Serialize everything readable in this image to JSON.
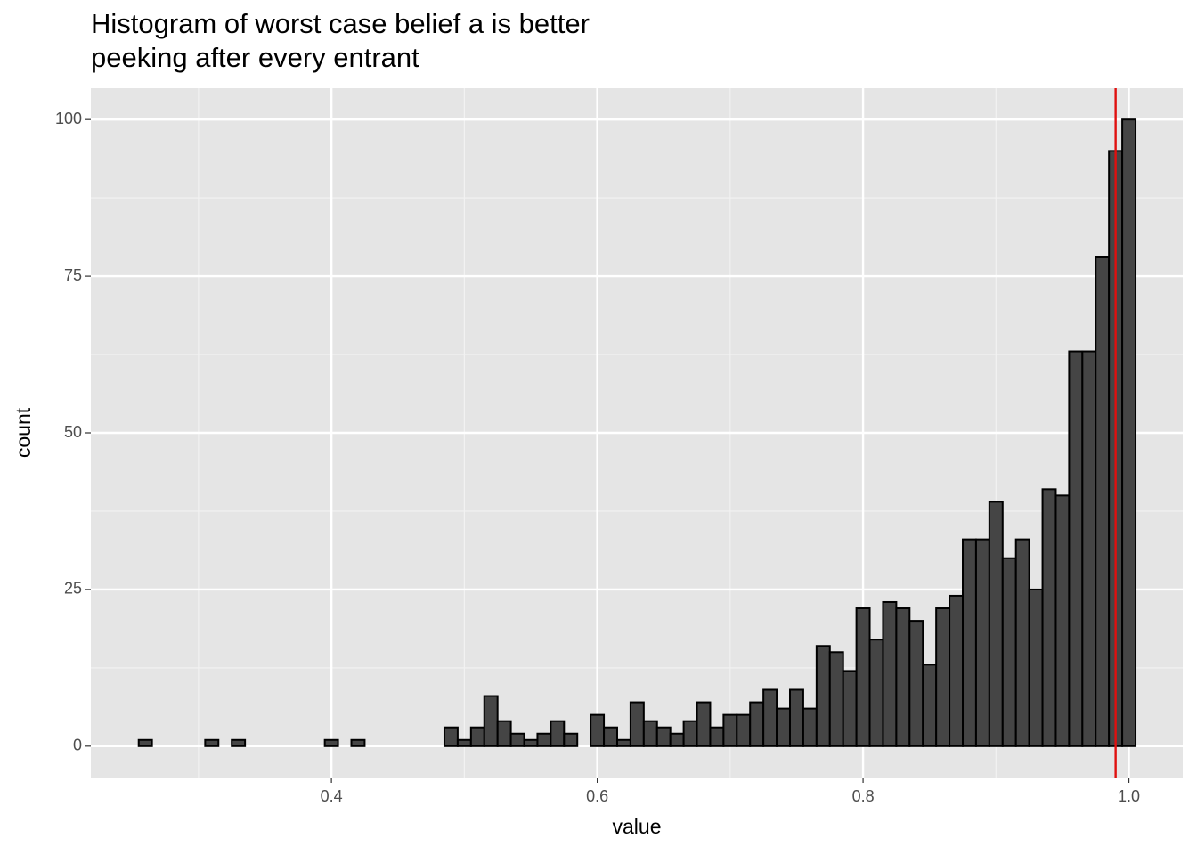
{
  "chart_data": {
    "type": "histogram",
    "title": [
      "Histogram of worst case belief a is better",
      "peeking after every entrant"
    ],
    "x_label": "value",
    "y_label": "count",
    "bins": [
      0.255,
      0.265,
      0.275,
      0.285,
      0.295,
      0.305,
      0.315,
      0.325,
      0.335,
      0.345,
      0.355,
      0.365,
      0.375,
      0.385,
      0.395,
      0.405,
      0.415,
      0.425,
      0.435,
      0.445,
      0.455,
      0.465,
      0.475,
      0.485,
      0.495,
      0.505,
      0.515,
      0.525,
      0.535,
      0.545,
      0.555,
      0.565,
      0.575,
      0.585,
      0.595,
      0.605,
      0.615,
      0.625,
      0.635,
      0.645,
      0.655,
      0.665,
      0.675,
      0.685,
      0.695,
      0.705,
      0.715,
      0.725,
      0.735,
      0.745,
      0.755,
      0.765,
      0.775,
      0.785,
      0.795,
      0.805,
      0.815,
      0.825,
      0.835,
      0.845,
      0.855,
      0.865,
      0.875,
      0.885,
      0.895,
      0.905,
      0.915,
      0.925,
      0.935,
      0.945,
      0.955,
      0.965,
      0.975,
      0.985,
      0.995,
      1.005
    ],
    "counts": [
      1,
      0,
      0,
      0,
      0,
      1,
      0,
      1,
      0,
      0,
      0,
      0,
      0,
      0,
      1,
      0,
      1,
      0,
      0,
      0,
      0,
      0,
      0,
      3,
      1,
      3,
      8,
      4,
      2,
      1,
      2,
      4,
      2,
      0,
      5,
      3,
      1,
      7,
      4,
      3,
      2,
      4,
      7,
      3,
      5,
      5,
      7,
      9,
      6,
      9,
      6,
      16,
      15,
      12,
      22,
      17,
      23,
      22,
      20,
      13,
      22,
      24,
      33,
      33,
      39,
      30,
      33,
      25,
      41,
      40,
      63,
      63,
      78,
      95,
      100
    ],
    "color": "#454545",
    "edge_color": "#000000",
    "vline": 0.99,
    "vline_color": "#e0100f",
    "xlim": [
      0.219,
      1.0405
    ],
    "ylim": [
      -5,
      105
    ],
    "xticks": [
      0.4,
      0.6,
      0.8,
      {
        "value": 1,
        "label": "1.0"
      }
    ],
    "yticks": [
      0,
      25,
      50,
      75,
      100
    ],
    "xminor": [
      0.3,
      0.5,
      0.7,
      0.9
    ],
    "yminor": [
      12.5,
      37.5,
      62.5,
      87.5
    ],
    "grid": true
  }
}
